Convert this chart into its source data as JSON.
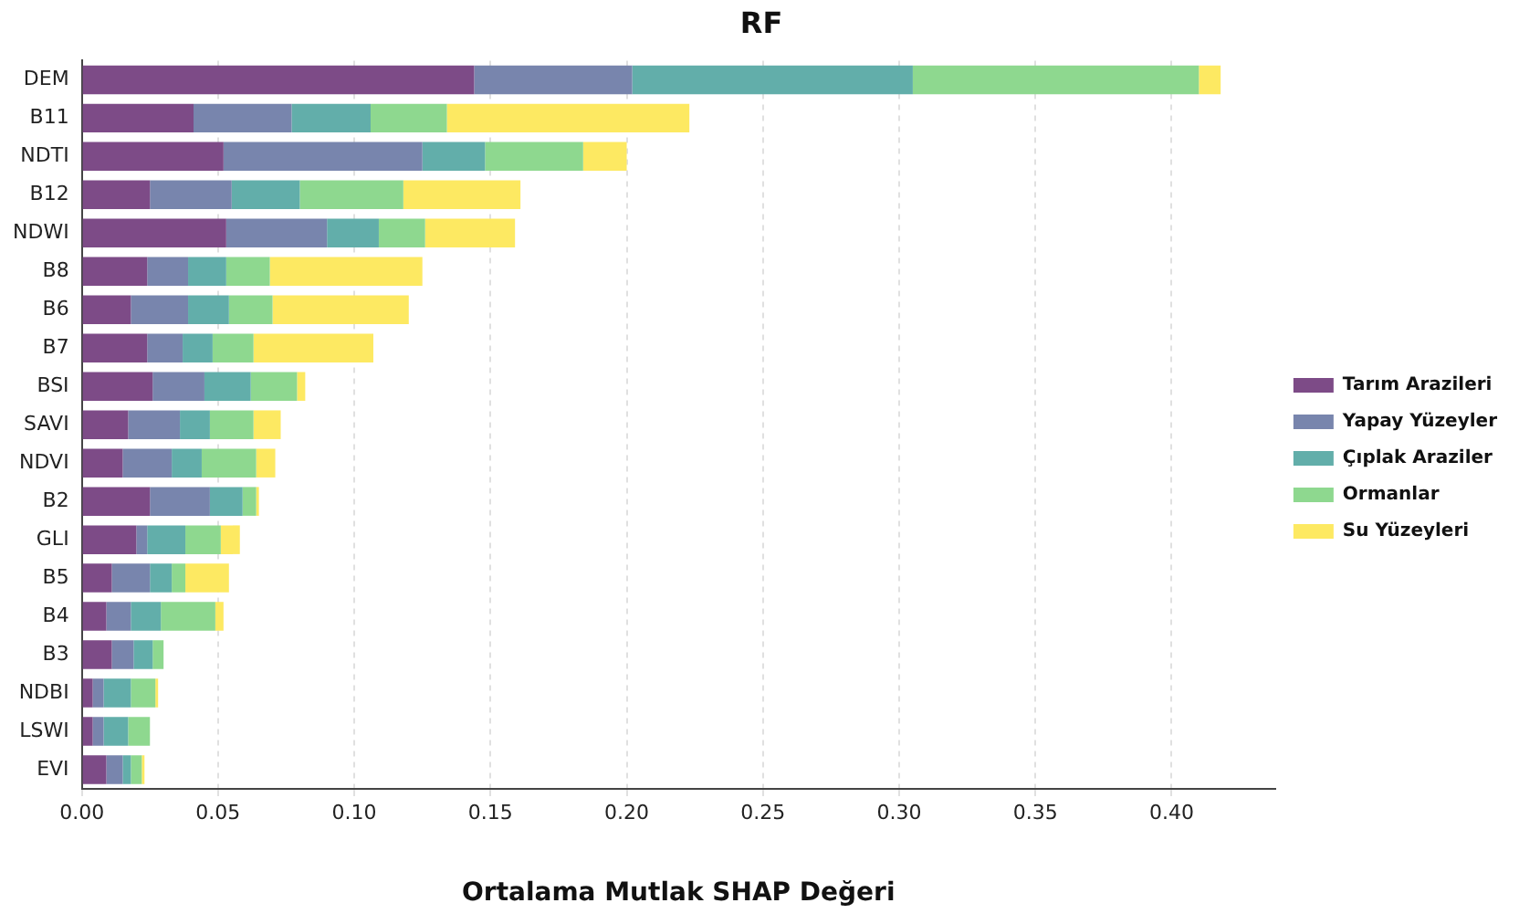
{
  "chart_data": {
    "type": "bar",
    "orientation": "horizontal",
    "stacked": true,
    "title": "RF",
    "xlabel": "Ortalama Mutlak SHAP Değeri",
    "categories": [
      "DEM",
      "B11",
      "NDTI",
      "B12",
      "NDWI",
      "B8",
      "B6",
      "B7",
      "BSI",
      "SAVI",
      "NDVI",
      "B2",
      "GLI",
      "B5",
      "B4",
      "B3",
      "NDBI",
      "LSWI",
      "EVI"
    ],
    "series": [
      {
        "name": "Tarım Arazileri",
        "color": "#7d4b87",
        "values": [
          0.144,
          0.041,
          0.052,
          0.025,
          0.053,
          0.024,
          0.018,
          0.024,
          0.026,
          0.017,
          0.015,
          0.025,
          0.02,
          0.011,
          0.009,
          0.011,
          0.004,
          0.004,
          0.009
        ]
      },
      {
        "name": "Yapay Yüzeyler",
        "color": "#7885ad",
        "values": [
          0.058,
          0.036,
          0.073,
          0.03,
          0.037,
          0.015,
          0.021,
          0.013,
          0.019,
          0.019,
          0.018,
          0.022,
          0.004,
          0.014,
          0.009,
          0.008,
          0.004,
          0.004,
          0.006
        ]
      },
      {
        "name": "Çıplak Araziler",
        "color": "#62aeaa",
        "values": [
          0.103,
          0.029,
          0.023,
          0.025,
          0.019,
          0.014,
          0.015,
          0.011,
          0.017,
          0.011,
          0.011,
          0.012,
          0.014,
          0.008,
          0.011,
          0.007,
          0.01,
          0.009,
          0.003
        ]
      },
      {
        "name": "Ormanlar",
        "color": "#8ed88f",
        "values": [
          0.105,
          0.028,
          0.036,
          0.038,
          0.017,
          0.016,
          0.016,
          0.015,
          0.017,
          0.016,
          0.02,
          0.005,
          0.013,
          0.005,
          0.02,
          0.004,
          0.009,
          0.008,
          0.004
        ]
      },
      {
        "name": "Su Yüzeyleri",
        "color": "#fde962",
        "values": [
          0.008,
          0.089,
          0.016,
          0.043,
          0.033,
          0.056,
          0.05,
          0.044,
          0.003,
          0.01,
          0.007,
          0.001,
          0.007,
          0.016,
          0.003,
          0,
          0.001,
          0,
          0.001
        ]
      }
    ],
    "xlim": [
      0,
      0.438
    ],
    "xticks": [
      {
        "value": 0,
        "label": "0.00"
      },
      {
        "value": 0.05,
        "label": "0.05"
      },
      {
        "value": 0.1,
        "label": "0.10"
      },
      {
        "value": 0.15,
        "label": "0.15"
      },
      {
        "value": 0.2,
        "label": "0.20"
      },
      {
        "value": 0.25,
        "label": "0.25"
      },
      {
        "value": 0.3,
        "label": "0.30"
      },
      {
        "value": 0.35,
        "label": "0.35"
      },
      {
        "value": 0.4,
        "label": "0.40"
      }
    ],
    "grid": "x",
    "legend": "right"
  }
}
